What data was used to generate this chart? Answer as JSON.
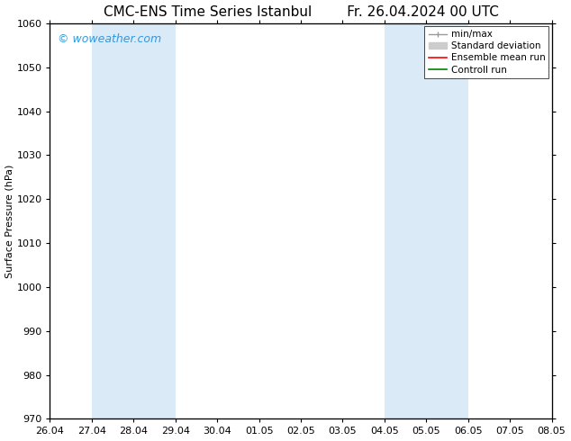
{
  "title_left": "CMC-ENS Time Series Istanbul",
  "title_right": "Fr. 26.04.2024 00 UTC",
  "ylabel": "Surface Pressure (hPa)",
  "ylim": [
    970,
    1060
  ],
  "yticks": [
    970,
    980,
    990,
    1000,
    1010,
    1020,
    1030,
    1040,
    1050,
    1060
  ],
  "xtick_labels": [
    "26.04",
    "27.04",
    "28.04",
    "29.04",
    "30.04",
    "01.05",
    "02.05",
    "03.05",
    "04.05",
    "05.05",
    "06.05",
    "07.05",
    "08.05"
  ],
  "shaded_bands": [
    {
      "start": 1,
      "end": 3
    },
    {
      "start": 8,
      "end": 10
    }
  ],
  "shaded_color": "#daeaf7",
  "background_color": "#ffffff",
  "watermark_text": "© woweather.com",
  "watermark_color": "#3399dd",
  "font_size_title": 11,
  "font_size_axis_label": 8,
  "font_size_tick": 8,
  "font_size_legend": 7.5,
  "font_size_watermark": 9,
  "legend_minmax_color": "#999999",
  "legend_std_color": "#cccccc",
  "legend_ens_color": "red",
  "legend_ctrl_color": "green"
}
